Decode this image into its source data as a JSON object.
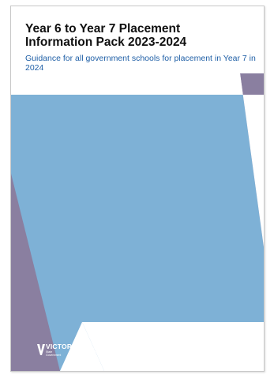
{
  "document": {
    "title_line1": "Year 6 to Year 7 Placement",
    "title_line2": "Information Pack 2023-2024",
    "subtitle": "Guidance for all government schools for placement in Year 7 in 2024"
  },
  "logo": {
    "wordmark": "VICTORIA",
    "sub_line1": "State",
    "sub_line2": "Government",
    "dept_line1": "Department",
    "dept_line2": "of Education"
  },
  "colors": {
    "blue_panel": "#7eb1d6",
    "purple_panel": "#8a7fa0",
    "title_text": "#101010",
    "subtitle_text": "#1f5fa6"
  }
}
